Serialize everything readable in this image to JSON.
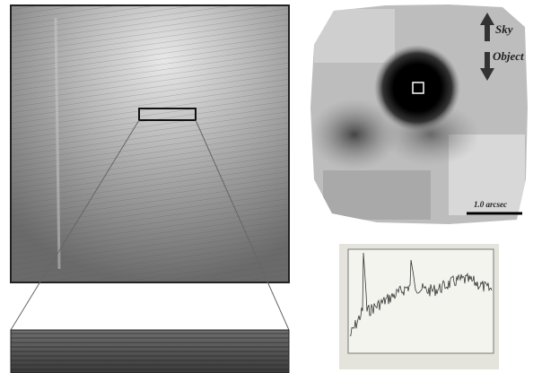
{
  "panels": {
    "map": {
      "labels": {
        "sky": "Sky",
        "object": "Object",
        "scale": "1.0 arcsec"
      }
    }
  }
}
